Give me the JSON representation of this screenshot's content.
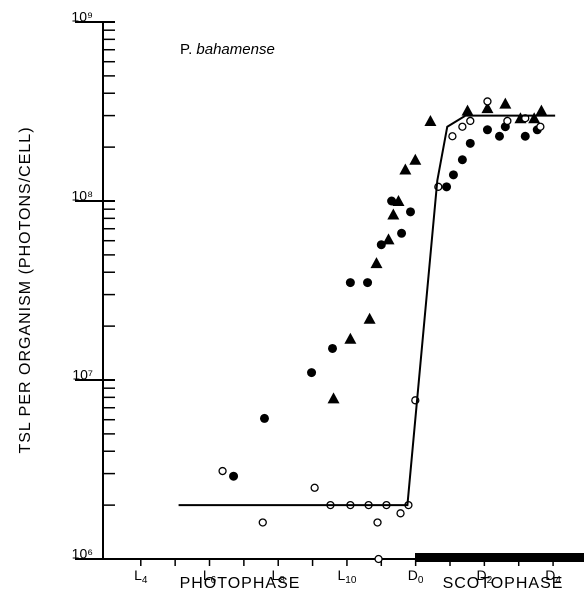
{
  "chart_data": {
    "type": "scatter",
    "title": "P. bahamense",
    "ylabel": "TSL PER ORGANISM (PHOTONS/CELL)",
    "xlabels": [
      "PHOTOPHASE",
      "SCOTOPHASE"
    ],
    "xlim": [
      2.9,
      16.9
    ],
    "xticks": [
      {
        "value": 4,
        "label": "L4"
      },
      {
        "value": 6,
        "label": "L6"
      },
      {
        "value": 8,
        "label": "L8"
      },
      {
        "value": 10,
        "label": "L10"
      },
      {
        "value": 12,
        "label": "D0"
      },
      {
        "value": 14,
        "label": "D2"
      },
      {
        "value": 16,
        "label": "D4"
      }
    ],
    "ylim": [
      1000000,
      1000000000
    ],
    "yscale": "log",
    "yticks": [
      {
        "value": 1000000,
        "label": "10⁶"
      },
      {
        "value": 10000000,
        "label": "10⁷"
      },
      {
        "value": 100000000,
        "label": "10⁸"
      },
      {
        "value": 1000000000,
        "label": "10⁹"
      }
    ],
    "series": [
      {
        "marker": "filled-circle",
        "color": "#000000",
        "x": [
          6.7,
          7.6,
          8.97,
          9.58,
          10.1,
          10.6,
          11.0,
          11.3,
          11.59,
          11.85,
          12.9,
          13.1,
          13.36,
          13.59,
          14.09,
          14.44,
          14.61,
          15.19,
          15.54
        ],
        "values": [
          2900000,
          6100000,
          11000000,
          15000000,
          35000000,
          35000000,
          57000000,
          100000000,
          66000000,
          87000000,
          120000000,
          140000000,
          170000000,
          210000000,
          250000000,
          230000000,
          260000000,
          230000000,
          250000000
        ]
      },
      {
        "marker": "triangle",
        "color": "#000000",
        "x": [
          9.61,
          10.1,
          10.66,
          10.86,
          11.21,
          11.35,
          11.5,
          11.7,
          11.99,
          12.43,
          13.51,
          14.09,
          14.61,
          15.05,
          15.45,
          15.66
        ],
        "values": [
          7900000,
          17000000,
          22000000,
          45000000,
          61000000,
          84000000,
          100000000,
          150000000,
          170000000,
          280000000,
          320000000,
          330000000,
          350000000,
          290000000,
          290000000,
          320000000
        ]
      },
      {
        "marker": "open-circle",
        "color": "#000000",
        "x": [
          6.38,
          7.55,
          9.06,
          9.52,
          10.1,
          10.63,
          10.89,
          10.92,
          11.15,
          11.56,
          11.79,
          11.99,
          12.66,
          13.07,
          13.36,
          13.59,
          14.09,
          14.67,
          15.19,
          15.63
        ],
        "values": [
          3100000,
          1600000,
          2500000,
          2000000,
          2000000,
          2000000,
          1600000,
          1000000,
          2000000,
          1800000,
          2000000,
          7700000,
          120000000,
          230000000,
          260000000,
          280000000,
          360000000,
          280000000,
          290000000,
          260000000
        ]
      },
      {
        "marker": "line",
        "color": "#000000",
        "x": [
          5.1,
          11.76,
          12.63,
          12.92,
          13.45,
          16.06
        ],
        "values": [
          2000000,
          2000000,
          130000000,
          260000000,
          300000000,
          300000000
        ]
      }
    ]
  }
}
